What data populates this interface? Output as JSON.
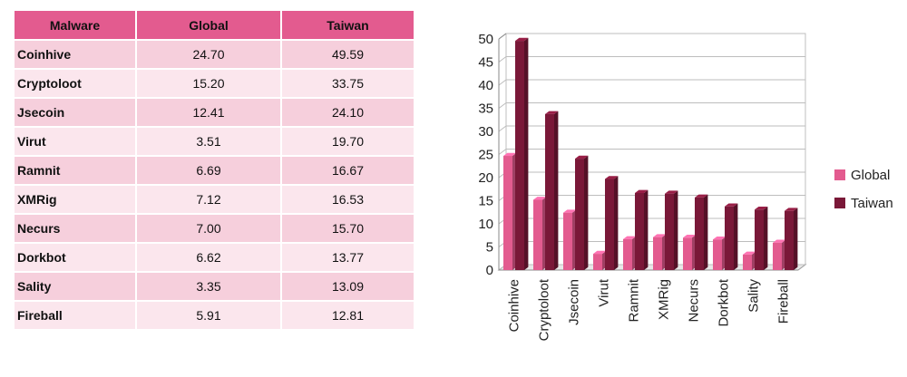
{
  "table": {
    "headers": [
      "Malware",
      "Global",
      "Taiwan"
    ],
    "rows": [
      [
        "Coinhive",
        "24.70",
        "49.59"
      ],
      [
        "Cryptoloot",
        "15.20",
        "33.75"
      ],
      [
        "Jsecoin",
        "12.41",
        "24.10"
      ],
      [
        "Virut",
        "3.51",
        "19.70"
      ],
      [
        "Ramnit",
        "6.69",
        "16.67"
      ],
      [
        "XMRig",
        "7.12",
        "16.53"
      ],
      [
        "Necurs",
        "7.00",
        "15.70"
      ],
      [
        "Dorkbot",
        "6.62",
        "13.77"
      ],
      [
        "Sality",
        "3.35",
        "13.09"
      ],
      [
        "Fireball",
        "5.91",
        "12.81"
      ]
    ],
    "colors": {
      "header": "#e35b8f",
      "row_odd": "#f6cfdc",
      "row_even": "#fbe6ed"
    }
  },
  "chart_data": {
    "type": "bar",
    "categories": [
      "Coinhive",
      "Cryptoloot",
      "Jsecoin",
      "Virut",
      "Ramnit",
      "XMRig",
      "Necurs",
      "Dorkbot",
      "Sality",
      "Fireball"
    ],
    "series": [
      {
        "name": "Global",
        "values": [
          24.7,
          15.2,
          12.41,
          3.51,
          6.69,
          7.12,
          7.0,
          6.62,
          3.35,
          5.91
        ],
        "color": "#e35b8f"
      },
      {
        "name": "Taiwan",
        "values": [
          49.59,
          33.75,
          24.1,
          19.7,
          16.67,
          16.53,
          15.7,
          13.77,
          13.09,
          12.81
        ],
        "color": "#7a1838"
      }
    ],
    "y_ticks": [
      "0",
      "5",
      "10",
      "15",
      "20",
      "25",
      "30",
      "35",
      "40",
      "45",
      "50"
    ],
    "ylim": [
      0,
      50
    ],
    "grid": true,
    "legend_position": "right",
    "style": "3d-column"
  }
}
